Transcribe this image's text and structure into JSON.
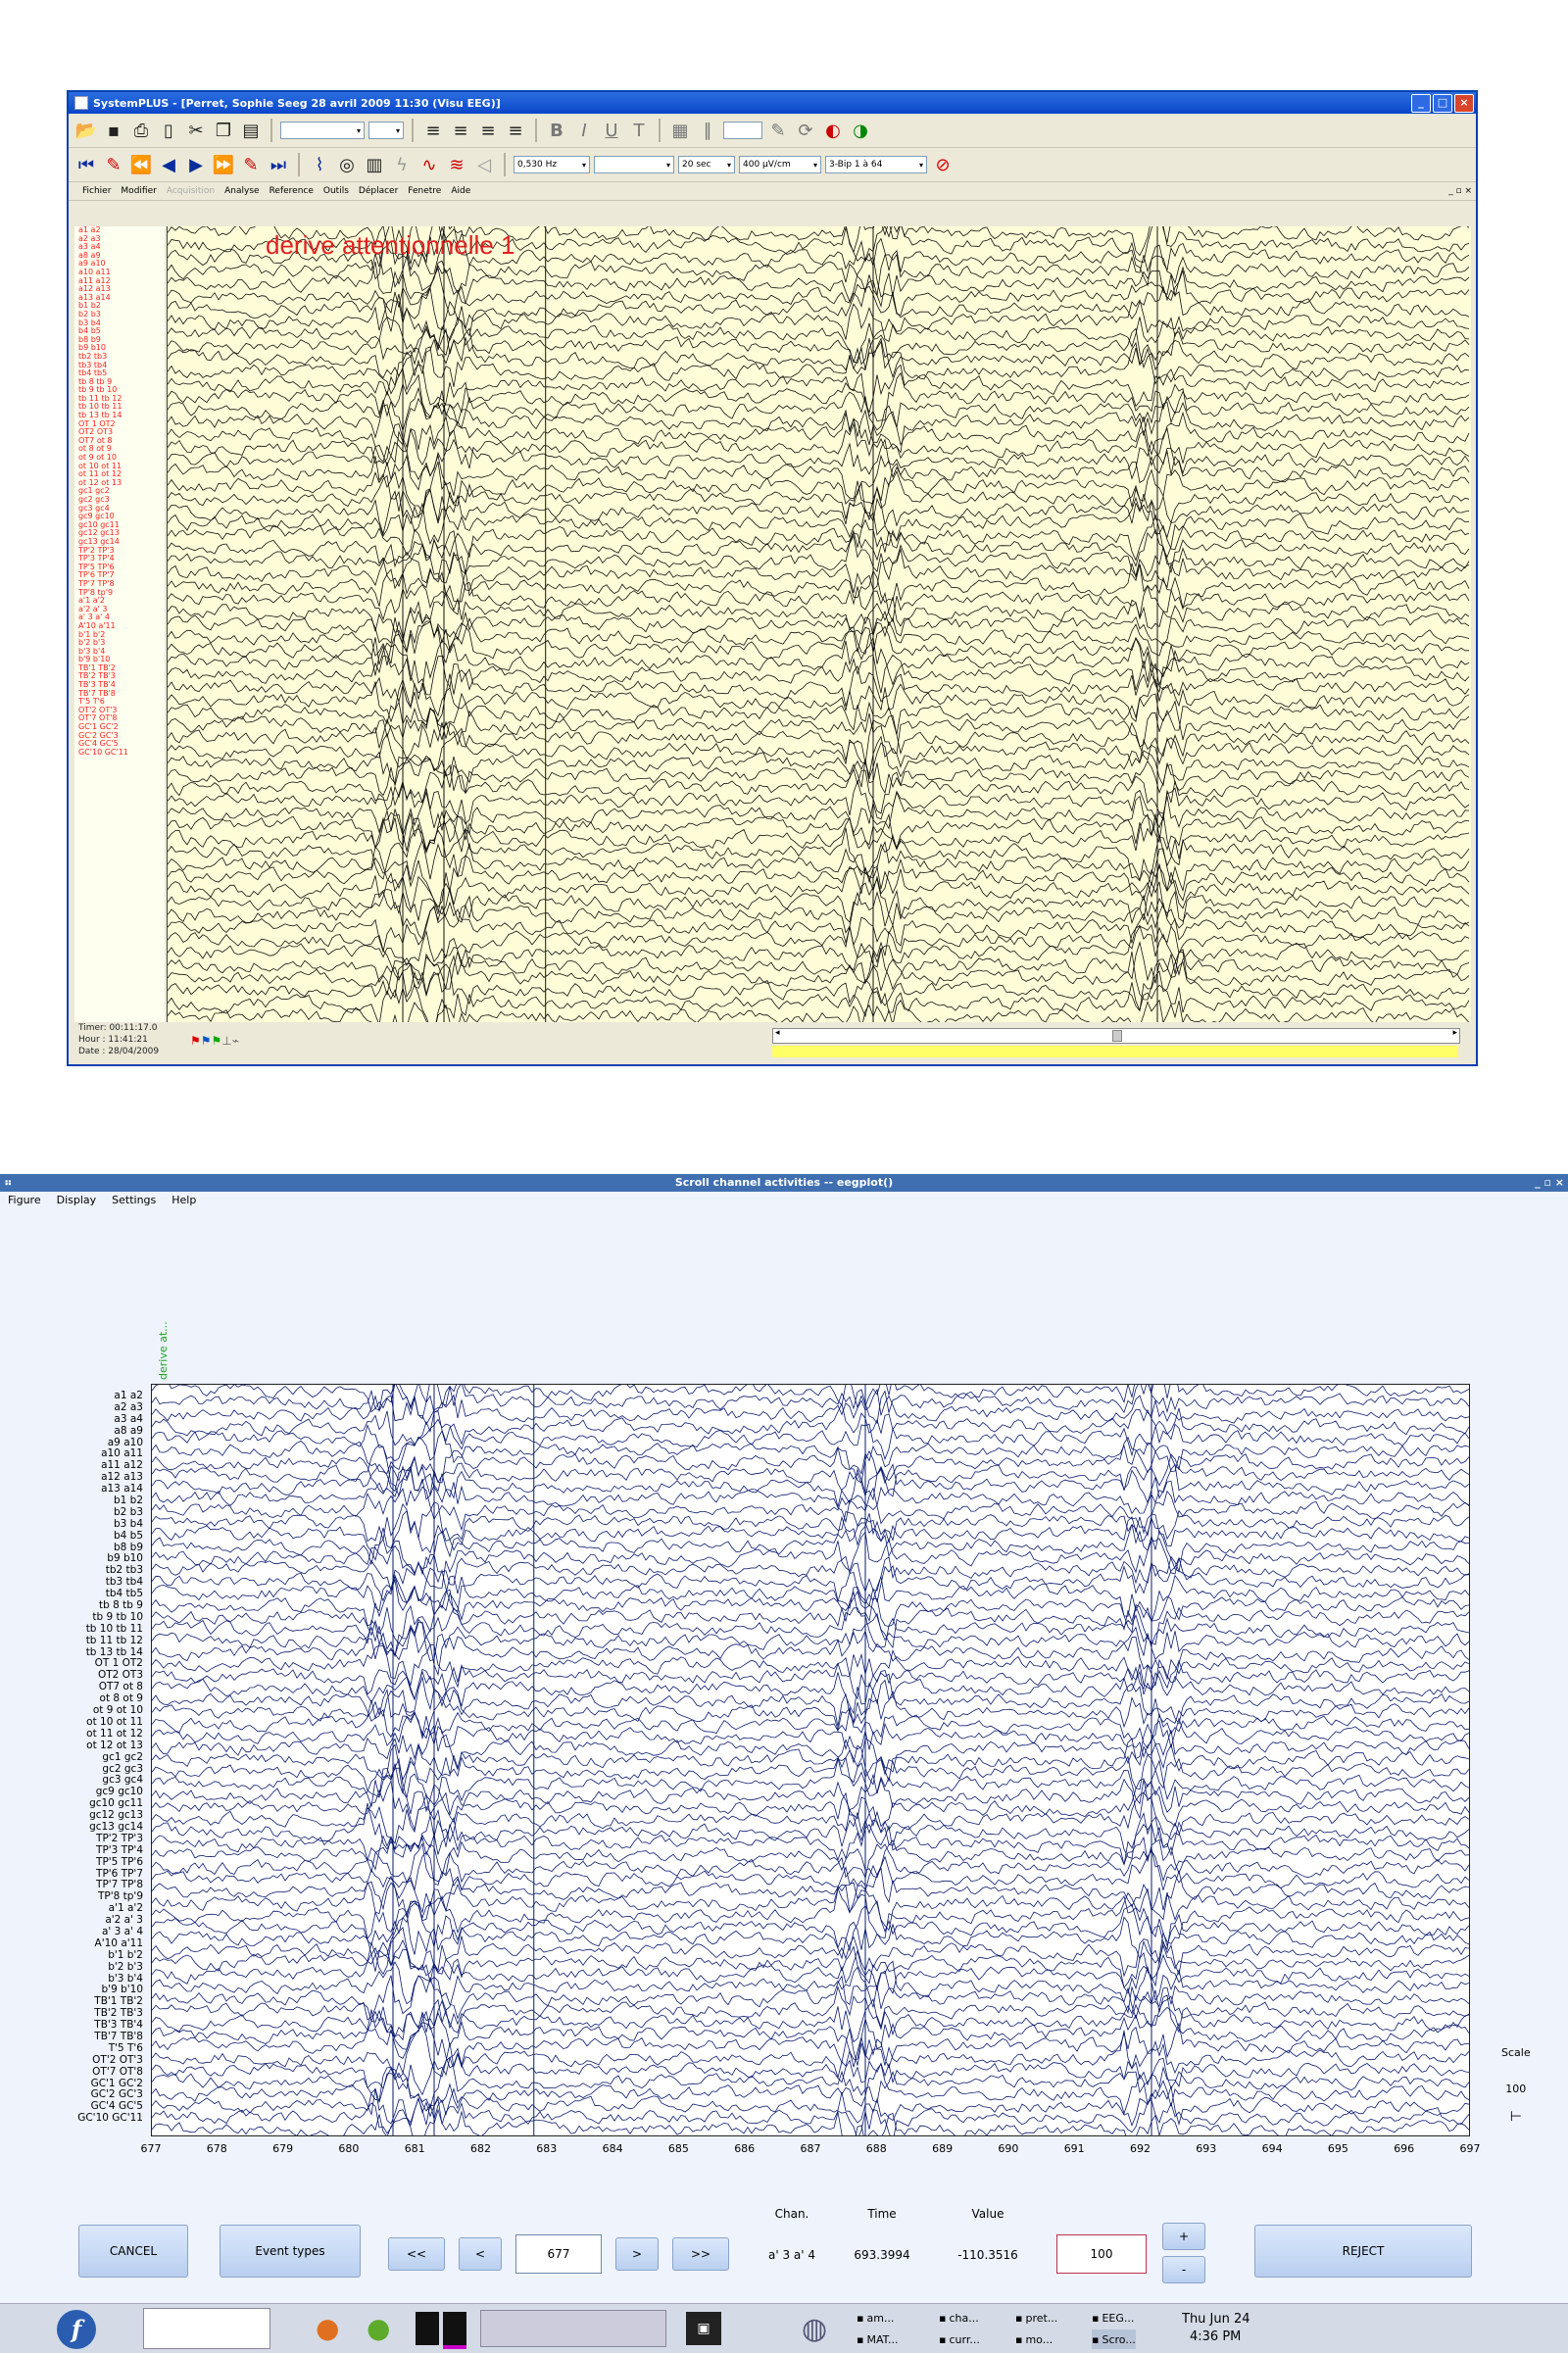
{
  "sp": {
    "title": "SystemPLUS - [Perret, Sophie Seeg 28 avril 2009 11:30 (Visu EEG)]",
    "toolbar2": {
      "filter": "0,530 Hz",
      "duration": "20 sec",
      "gain": "400 µV/cm",
      "montage": "3-Bip 1 à 64"
    },
    "menu": [
      "Fichier",
      "Modifier",
      "Acquisition",
      "Analyse",
      "Reference",
      "Outils",
      "Déplacer",
      "Fenetre",
      "Aide"
    ],
    "annotation": "derive attentionnelle 1",
    "channels": [
      "a1 a2",
      "a2 a3",
      "a3 a4",
      "a8 a9",
      "a9 a10",
      "a10 a11",
      "a11 a12",
      "a12 a13",
      "a13 a14",
      "b1 b2",
      "b2 b3",
      "b3 b4",
      "b4 b5",
      "b8 b9",
      "b9 b10",
      "tb2 tb3",
      "tb3 tb4",
      "tb4 tb5",
      "tb 8 tb 9",
      "tb 9 tb 10",
      "tb 11 tb 12",
      "tb 10 tb 11",
      "tb 13 tb 14",
      "OT 1 OT2",
      "OT2 OT3",
      "OT7 ot 8",
      "ot 8 ot 9",
      "ot 9 ot 10",
      "ot 10 ot 11",
      "ot 11 ot 12",
      "ot 12 ot 13",
      "gc1 gc2",
      "gc2 gc3",
      "gc3 gc4",
      "gc9 gc10",
      "gc10 gc11",
      "gc12 gc13",
      "gc13 gc14",
      "TP'2 TP'3",
      "TP'3 TP'4",
      "TP'5 TP'6",
      "TP'6 TP'7",
      "TP'7 TP'8",
      "TP'8 tp'9",
      "a'1 a'2",
      "a'2 a' 3",
      "a' 3 a' 4",
      "A'10 a'11",
      "b'1 b'2",
      "b'2 b'3",
      "b'3 b'4",
      "b'9 b'10",
      "TB'1 TB'2",
      "TB'2 TB'3",
      "TB'3 TB'4",
      "TB'7 TB'8",
      "T'5 T'6",
      "OT'2 OT'3",
      "OT'7 OT'8",
      "GC'1 GC'2",
      "GC'2 GC'3",
      "GC'4 GC'5",
      "GC'10 GC'11"
    ],
    "status": {
      "timer": "Timer: 00:11:17.0",
      "hour": "Hour : 11:41:21",
      "date": "Date : 28/04/2009"
    }
  },
  "eg": {
    "title": "Scroll channel activities -- eegplot()",
    "menu": [
      "Figure",
      "Display",
      "Settings",
      "Help"
    ],
    "annotation": "derive at...",
    "channels": [
      "a1 a2",
      "a2 a3",
      "a3 a4",
      "a8 a9",
      "a9 a10",
      "a10 a11",
      "a11 a12",
      "a12 a13",
      "a13 a14",
      "b1 b2",
      "b2 b3",
      "b3 b4",
      "b4 b5",
      "b8 b9",
      "b9 b10",
      "tb2 tb3",
      "tb3 tb4",
      "tb4 tb5",
      "tb 8 tb 9",
      "tb 9 tb 10",
      "tb 10 tb 11",
      "tb 11 tb 12",
      "tb 13 tb 14",
      "OT 1 OT2",
      "OT2 OT3",
      "OT7 ot 8",
      "ot 8 ot 9",
      "ot 9 ot 10",
      "ot 10 ot 11",
      "ot 11 ot 12",
      "ot 12 ot 13",
      "gc1 gc2",
      "gc2 gc3",
      "gc3 gc4",
      "gc9 gc10",
      "gc10 gc11",
      "gc12 gc13",
      "gc13 gc14",
      "TP'2 TP'3",
      "TP'3 TP'4",
      "TP'5 TP'6",
      "TP'6 TP'7",
      "TP'7 TP'8",
      "TP'8 tp'9",
      "a'1 a'2",
      "a'2 a' 3",
      "a' 3 a' 4",
      "A'10 a'11",
      "b'1 b'2",
      "b'2 b'3",
      "b'3 b'4",
      "b'9 b'10",
      "TB'1 TB'2",
      "TB'2 TB'3",
      "TB'3 TB'4",
      "TB'7 TB'8",
      "T'5 T'6",
      "OT'2 OT'3",
      "OT'7 OT'8",
      "GC'1 GC'2",
      "GC'2 GC'3",
      "GC'4 GC'5",
      "GC'10 GC'11"
    ],
    "xticks": [
      "677",
      "678",
      "679",
      "680",
      "681",
      "682",
      "683",
      "684",
      "685",
      "686",
      "687",
      "688",
      "689",
      "690",
      "691",
      "692",
      "693",
      "694",
      "695",
      "696",
      "697"
    ],
    "scale_label": "Scale",
    "scale_value": "100",
    "buttons": {
      "cancel": "CANCEL",
      "event_types": "Event types",
      "prev_fast": "<<",
      "prev": "<",
      "next": ">",
      "next_fast": ">>",
      "plus": "+",
      "minus": "-",
      "reject": "REJECT"
    },
    "position_value": "677",
    "scale_input": "100",
    "info": {
      "chan_label": "Chan.",
      "time_label": "Time",
      "value_label": "Value",
      "chan": "a' 3 a' 4",
      "time": "693.3994",
      "value": "-110.3516"
    }
  },
  "taskbar": {
    "items_top": [
      "am...",
      "cha...",
      "pret...",
      "EEG..."
    ],
    "items_bottom": [
      "MAT...",
      "curr...",
      "mo...",
      "Scro..."
    ],
    "day": "Thu Jun 24",
    "time": "4:36 PM"
  }
}
